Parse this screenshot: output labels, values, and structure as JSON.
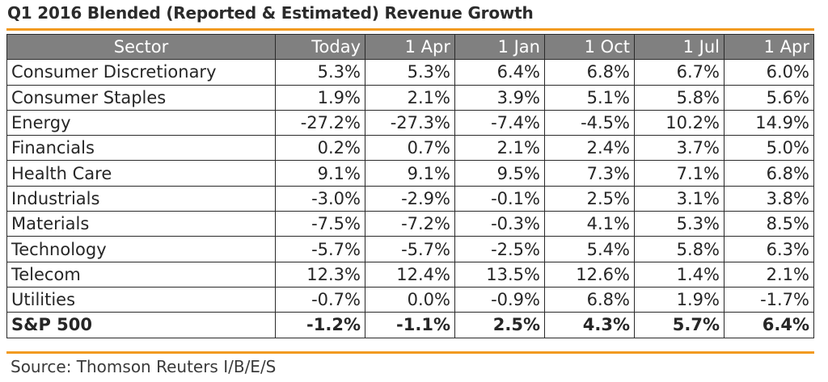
{
  "chart_data": {
    "type": "table",
    "title": "Q1 2016 Blended (Reported & Estimated) Revenue Growth",
    "columns": [
      "Sector",
      "Today",
      "1 Apr",
      "1 Jan",
      "1 Oct",
      "1 Jul",
      "1 Apr"
    ],
    "rows": [
      {
        "sector": "Consumer Discretionary",
        "values": [
          "5.3%",
          "5.3%",
          "6.4%",
          "6.8%",
          "6.7%",
          "6.0%"
        ]
      },
      {
        "sector": "Consumer Staples",
        "values": [
          "1.9%",
          "2.1%",
          "3.9%",
          "5.1%",
          "5.8%",
          "5.6%"
        ]
      },
      {
        "sector": "Energy",
        "values": [
          "-27.2%",
          "-27.3%",
          "-7.4%",
          "-4.5%",
          "10.2%",
          "14.9%"
        ]
      },
      {
        "sector": "Financials",
        "values": [
          "0.2%",
          "0.7%",
          "2.1%",
          "2.4%",
          "3.7%",
          "5.0%"
        ]
      },
      {
        "sector": "Health Care",
        "values": [
          "9.1%",
          "9.1%",
          "9.5%",
          "7.3%",
          "7.1%",
          "6.8%"
        ]
      },
      {
        "sector": "Industrials",
        "values": [
          "-3.0%",
          "-2.9%",
          "-0.1%",
          "2.5%",
          "3.1%",
          "3.8%"
        ]
      },
      {
        "sector": "Materials",
        "values": [
          "-7.5%",
          "-7.2%",
          "-0.3%",
          "4.1%",
          "5.3%",
          "8.5%"
        ]
      },
      {
        "sector": "Technology",
        "values": [
          "-5.7%",
          "-5.7%",
          "-2.5%",
          "5.4%",
          "5.8%",
          "6.3%"
        ]
      },
      {
        "sector": "Telecom",
        "values": [
          "12.3%",
          "12.4%",
          "13.5%",
          "12.6%",
          "1.4%",
          "2.1%"
        ]
      },
      {
        "sector": "Utilities",
        "values": [
          "-0.7%",
          "0.0%",
          "-0.9%",
          "6.8%",
          "1.9%",
          "-1.7%"
        ]
      },
      {
        "sector": "S&P 500",
        "values": [
          "-1.2%",
          "-1.1%",
          "2.5%",
          "4.3%",
          "5.7%",
          "6.4%"
        ],
        "bold": true
      }
    ],
    "source": "Source: Thomson Reuters I/B/E/S",
    "colors": {
      "header_bg": "#808080",
      "accent_rule": "#f29a20"
    }
  }
}
